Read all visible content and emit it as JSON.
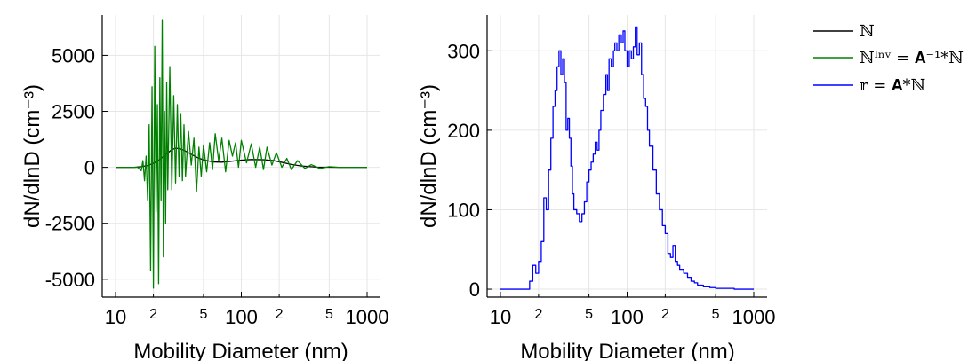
{
  "chart_data": [
    {
      "type": "line",
      "xscale": "log",
      "xlim": [
        10,
        1000
      ],
      "ylim": [
        -5800,
        6800
      ],
      "xlabel": "Mobility Diameter (nm)",
      "ylabel": "dN/dlnD (cm⁻³)",
      "x_ticks_major": [
        "10",
        "100",
        "1000"
      ],
      "x_ticks_minor": [
        "2",
        "5",
        "2",
        "5"
      ],
      "y_ticks": [
        "5000",
        "2500",
        "0",
        "-2500",
        "-5000"
      ],
      "grid": true,
      "series": [
        {
          "name": "ℕ",
          "color": "#000000",
          "x": [
            10,
            14,
            16,
            18,
            20,
            22,
            25,
            28,
            30,
            32,
            35,
            40,
            45,
            50,
            60,
            70,
            80,
            100,
            120,
            150,
            180,
            200,
            250,
            300,
            400,
            600,
            1000
          ],
          "y": [
            0,
            0,
            30,
            80,
            180,
            320,
            560,
            790,
            850,
            840,
            760,
            580,
            430,
            330,
            240,
            230,
            260,
            320,
            350,
            340,
            300,
            250,
            130,
            60,
            10,
            0,
            0
          ]
        },
        {
          "name": "ℕᴵⁿᵛ = 𝐀⁻¹*ℕ",
          "color": "#008000",
          "x": [
            10,
            15,
            16,
            16.5,
            17,
            17.5,
            18,
            18.5,
            19,
            19.5,
            20,
            20.5,
            21,
            21.5,
            22,
            22.5,
            23,
            23.5,
            24,
            24.5,
            25,
            25.5,
            26,
            27,
            28,
            29,
            30,
            31,
            32,
            33,
            34,
            35,
            36,
            38,
            40,
            42,
            44,
            46,
            48,
            50,
            53,
            56,
            59,
            62,
            66,
            70,
            75,
            80,
            85,
            90,
            95,
            100,
            110,
            120,
            130,
            140,
            150,
            160,
            175,
            190,
            210,
            230,
            250,
            280,
            320,
            360,
            420,
            500,
            600,
            800,
            1000
          ],
          "y": [
            0,
            0,
            -150,
            300,
            -600,
            500,
            -1500,
            1900,
            -4600,
            3600,
            -5400,
            5400,
            -2000,
            2800,
            -5200,
            4000,
            -1500,
            6600,
            -4000,
            2500,
            -2500,
            3800,
            -1000,
            4500,
            -1000,
            3200,
            -700,
            2800,
            -400,
            2400,
            -600,
            1900,
            -400,
            1600,
            100,
            1300,
            -1100,
            900,
            -400,
            1000,
            -200,
            1100,
            -100,
            1500,
            300,
            1300,
            -200,
            1200,
            500,
            1100,
            0,
            1200,
            200,
            1050,
            0,
            900,
            -100,
            900,
            100,
            650,
            0,
            400,
            -100,
            300,
            -50,
            120,
            -50,
            30,
            0,
            0,
            0
          ]
        }
      ]
    },
    {
      "type": "line",
      "xscale": "log",
      "step": true,
      "xlim": [
        10,
        1000
      ],
      "ylim": [
        -10,
        345
      ],
      "xlabel": "Mobility Diameter (nm)",
      "ylabel": "dN/dlnD (cm⁻³)",
      "x_ticks_major": [
        "10",
        "100",
        "1000"
      ],
      "x_ticks_minor": [
        "2",
        "5",
        "2",
        "5"
      ],
      "y_ticks": [
        "300",
        "200",
        "100",
        "0"
      ],
      "grid": true,
      "series": [
        {
          "name": "𝕣 = 𝐀*ℕ",
          "color": "#0000ff",
          "x": [
            10,
            16,
            17,
            18,
            19,
            20,
            21,
            22,
            23,
            24,
            25,
            26,
            27,
            28,
            29,
            30,
            31,
            32,
            33,
            34,
            35,
            36,
            37,
            38,
            40,
            42,
            44,
            46,
            48,
            50,
            52,
            54,
            56,
            58,
            60,
            62,
            65,
            68,
            70,
            72,
            75,
            78,
            80,
            83,
            86,
            90,
            93,
            96,
            100,
            104,
            108,
            112,
            116,
            120,
            125,
            130,
            135,
            140,
            145,
            150,
            160,
            170,
            180,
            190,
            200,
            210,
            220,
            230,
            240,
            250,
            260,
            280,
            300,
            320,
            340,
            360,
            400,
            450,
            500,
            600,
            700,
            800,
            1000
          ],
          "y": [
            0,
            0,
            10,
            30,
            20,
            35,
            60,
            115,
            100,
            150,
            190,
            230,
            250,
            280,
            300,
            270,
            290,
            260,
            200,
            215,
            190,
            155,
            120,
            100,
            95,
            85,
            95,
            110,
            135,
            150,
            160,
            170,
            185,
            175,
            200,
            225,
            245,
            270,
            250,
            290,
            280,
            300,
            310,
            300,
            320,
            310,
            325,
            300,
            280,
            300,
            290,
            305,
            330,
            295,
            310,
            270,
            240,
            230,
            200,
            180,
            150,
            120,
            100,
            80,
            70,
            45,
            40,
            55,
            35,
            30,
            25,
            20,
            15,
            10,
            8,
            5,
            3,
            2,
            1,
            1,
            0,
            0,
            0
          ]
        }
      ]
    }
  ],
  "legend": {
    "placement": "top-right",
    "entries": [
      {
        "label": "ℕ",
        "color": "#000000"
      },
      {
        "label": "ℕᴵⁿᵛ = 𝐀⁻¹*ℕ",
        "color": "#008000"
      },
      {
        "label": "𝕣 = 𝐀*ℕ",
        "color": "#0000ff"
      }
    ]
  }
}
